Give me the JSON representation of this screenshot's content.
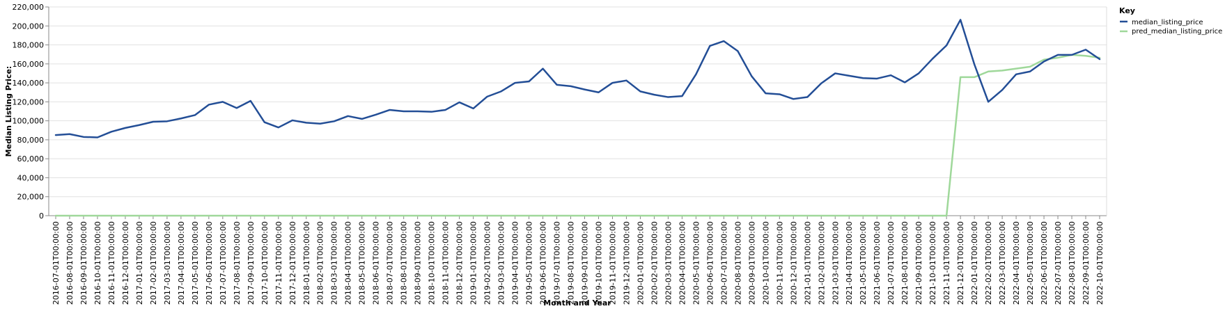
{
  "chart_data": {
    "type": "line",
    "xlabel": "Month and Year",
    "ylabel": "Median Listing Price:",
    "ylim": [
      0,
      220000
    ],
    "yticks": [
      "0",
      "20,000",
      "40,000",
      "60,000",
      "80,000",
      "100,000",
      "120,000",
      "140,000",
      "160,000",
      "180,000",
      "200,000",
      "220,000"
    ],
    "grid": true,
    "legend": {
      "title": "Key",
      "placement": "top-right",
      "entries": [
        "median_listing_price",
        "pred_median_listing_price"
      ]
    },
    "categories": [
      "2016-07-01T00:00:00",
      "2016-08-01T00:00:00",
      "2016-09-01T00:00:00",
      "2016-10-01T00:00:00",
      "2016-11-01T00:00:00",
      "2016-12-01T00:00:00",
      "2017-01-01T00:00:00",
      "2017-02-01T00:00:00",
      "2017-03-01T00:00:00",
      "2017-04-01T00:00:00",
      "2017-05-01T00:00:00",
      "2017-06-01T00:00:00",
      "2017-07-01T00:00:00",
      "2017-08-01T00:00:00",
      "2017-09-01T00:00:00",
      "2017-10-01T00:00:00",
      "2017-11-01T00:00:00",
      "2017-12-01T00:00:00",
      "2018-01-01T00:00:00",
      "2018-02-01T00:00:00",
      "2018-03-01T00:00:00",
      "2018-04-01T00:00:00",
      "2018-05-01T00:00:00",
      "2018-06-01T00:00:00",
      "2018-07-01T00:00:00",
      "2018-08-01T00:00:00",
      "2018-09-01T00:00:00",
      "2018-10-01T00:00:00",
      "2018-11-01T00:00:00",
      "2018-12-01T00:00:00",
      "2019-01-01T00:00:00",
      "2019-02-01T00:00:00",
      "2019-03-01T00:00:00",
      "2019-04-01T00:00:00",
      "2019-05-01T00:00:00",
      "2019-06-01T00:00:00",
      "2019-07-01T00:00:00",
      "2019-08-01T00:00:00",
      "2019-09-01T00:00:00",
      "2019-10-01T00:00:00",
      "2019-11-01T00:00:00",
      "2019-12-01T00:00:00",
      "2020-01-01T00:00:00",
      "2020-02-01T00:00:00",
      "2020-03-01T00:00:00",
      "2020-04-01T00:00:00",
      "2020-05-01T00:00:00",
      "2020-06-01T00:00:00",
      "2020-07-01T00:00:00",
      "2020-08-01T00:00:00",
      "2020-09-01T00:00:00",
      "2020-10-01T00:00:00",
      "2020-11-01T00:00:00",
      "2020-12-01T00:00:00",
      "2021-01-01T00:00:00",
      "2021-02-01T00:00:00",
      "2021-03-01T00:00:00",
      "2021-04-01T00:00:00",
      "2021-05-01T00:00:00",
      "2021-06-01T00:00:00",
      "2021-07-01T00:00:00",
      "2021-08-01T00:00:00",
      "2021-09-01T00:00:00",
      "2021-10-01T00:00:00",
      "2021-11-01T00:00:00",
      "2021-12-01T00:00:00",
      "2022-01-01T00:00:00",
      "2022-02-01T00:00:00",
      "2022-03-01T00:00:00",
      "2022-04-01T00:00:00",
      "2022-05-01T00:00:00",
      "2022-06-01T00:00:00",
      "2022-07-01T00:00:00",
      "2022-08-01T00:00:00",
      "2022-09-01T00:00:00",
      "2022-10-01T00:00:00"
    ],
    "series": [
      {
        "name": "median_listing_price",
        "color": "#234e96",
        "values": [
          85000,
          86000,
          83000,
          82500,
          88500,
          92500,
          95500,
          99000,
          99500,
          102500,
          106000,
          117000,
          120000,
          113500,
          121000,
          98500,
          93000,
          100500,
          98000,
          97000,
          99500,
          105000,
          102000,
          106500,
          111500,
          110000,
          110000,
          109500,
          111500,
          119500,
          113000,
          125500,
          131000,
          140000,
          141500,
          155000,
          138000,
          136500,
          133000,
          130000,
          140000,
          142500,
          131000,
          127500,
          125000,
          126000,
          149000,
          179000,
          184000,
          173500,
          147000,
          129000,
          128000,
          123000,
          125000,
          139500,
          150000,
          147500,
          145000,
          144500,
          148000,
          140500,
          150000,
          165500,
          179500,
          206500,
          159500,
          120000,
          132500,
          149000,
          152000,
          162500,
          169500,
          169500,
          175000,
          165000
        ]
      },
      {
        "name": "pred_median_listing_price",
        "color": "#9fd89a",
        "values": [
          0,
          0,
          0,
          0,
          0,
          0,
          0,
          0,
          0,
          0,
          0,
          0,
          0,
          0,
          0,
          0,
          0,
          0,
          0,
          0,
          0,
          0,
          0,
          0,
          0,
          0,
          0,
          0,
          0,
          0,
          0,
          0,
          0,
          0,
          0,
          0,
          0,
          0,
          0,
          0,
          0,
          0,
          0,
          0,
          0,
          0,
          0,
          0,
          0,
          0,
          0,
          0,
          0,
          0,
          0,
          0,
          0,
          0,
          0,
          0,
          0,
          0,
          0,
          0,
          0,
          146000,
          146000,
          152000,
          153000,
          155000,
          157000,
          164500,
          166500,
          169500,
          168500,
          166500
        ]
      }
    ]
  }
}
